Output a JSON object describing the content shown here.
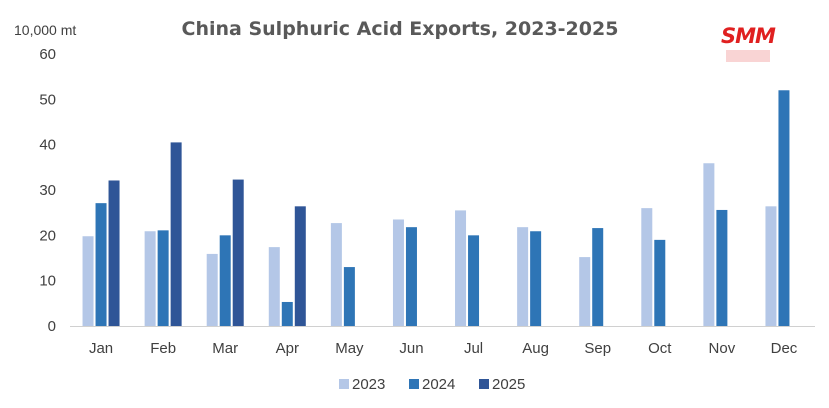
{
  "chart_data": {
    "type": "bar",
    "title": "China Sulphuric Acid Exports, 2023-2025",
    "ylabel": "10,000 mt",
    "xlabel": "",
    "ylim": [
      0,
      60
    ],
    "yticks": [
      0,
      10,
      20,
      30,
      40,
      50,
      60
    ],
    "grid": false,
    "legend_position": "bottom",
    "categories": [
      "Jan",
      "Feb",
      "Mar",
      "Apr",
      "May",
      "Jun",
      "Jul",
      "Aug",
      "Sep",
      "Oct",
      "Nov",
      "Dec"
    ],
    "series": [
      {
        "name": "2023",
        "color": "#b4c7e7",
        "values": [
          19.8,
          20.9,
          15.9,
          17.4,
          22.7,
          23.5,
          25.5,
          21.8,
          15.2,
          26.0,
          35.9,
          26.4
        ]
      },
      {
        "name": "2024",
        "color": "#2e75b6",
        "values": [
          27.1,
          21.1,
          20.0,
          5.3,
          13.0,
          21.8,
          20.0,
          20.9,
          21.6,
          19.0,
          25.6,
          52.0
        ]
      },
      {
        "name": "2025",
        "color": "#2f5597",
        "values": [
          32.1,
          40.5,
          32.3,
          26.4,
          null,
          null,
          null,
          null,
          null,
          null,
          null,
          null
        ]
      }
    ]
  },
  "logo": {
    "text": "SMM",
    "color": "#e02020"
  }
}
